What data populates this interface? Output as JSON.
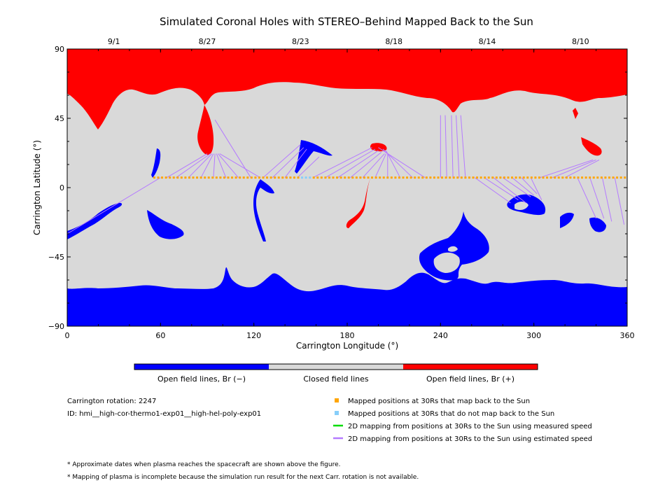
{
  "chart_data": {
    "type": "map",
    "title": "Simulated Coronal Holes with STEREO–Behind Mapped Back to the Sun",
    "xlabel": "Carrington Longitude (°)",
    "ylabel": "Carrington Latitude (°)",
    "xlim": [
      0,
      360
    ],
    "ylim": [
      -90,
      90
    ],
    "xticks": [
      0,
      60,
      120,
      180,
      240,
      300,
      360
    ],
    "yticks": [
      90,
      45,
      0,
      -45,
      -90
    ],
    "ytick_labels": [
      "90",
      "45",
      "0",
      "−45",
      "−90"
    ],
    "top_dates": [
      {
        "lon": 30,
        "label": "9/1"
      },
      {
        "lon": 90,
        "label": "8/27"
      },
      {
        "lon": 150,
        "label": "8/23"
      },
      {
        "lon": 210,
        "label": "8/18"
      },
      {
        "lon": 270,
        "label": "8/14"
      },
      {
        "lon": 330,
        "label": "8/10"
      }
    ],
    "colors": {
      "negative": "#0000ff",
      "closed": "#d9d9d9",
      "positive": "#ff0000",
      "mapped": "#ffa500",
      "unmapped": "#87cefa",
      "measured": "#00dd00",
      "estimated": "#b57bff"
    },
    "mapped_latitude": 6.5,
    "mapped_lon_start": 56,
    "mapped_lon_end": 360,
    "mapped_step": 2.5,
    "unmapped_lons": [
      151,
      153,
      155
    ],
    "field_lines": [
      {
        "from": [
          60,
          6.5
        ],
        "to": [
          0,
          -30
        ]
      },
      {
        "from": [
          64,
          6.5
        ],
        "to": [
          90,
          22
        ]
      },
      {
        "from": [
          70,
          6.5
        ],
        "to": [
          92,
          22
        ]
      },
      {
        "from": [
          78,
          6.5
        ],
        "to": [
          93,
          22
        ]
      },
      {
        "from": [
          86,
          6.5
        ],
        "to": [
          94,
          22
        ]
      },
      {
        "from": [
          94,
          6.5
        ],
        "to": [
          95,
          22
        ]
      },
      {
        "from": [
          102,
          6.5
        ],
        "to": [
          96,
          22
        ]
      },
      {
        "from": [
          110,
          6.5
        ],
        "to": [
          97,
          22
        ]
      },
      {
        "from": [
          118,
          6.5
        ],
        "to": [
          95,
          44
        ]
      },
      {
        "from": [
          124,
          6.5
        ],
        "to": [
          98,
          22
        ]
      },
      {
        "from": [
          126,
          6.5
        ],
        "to": [
          150,
          28
        ]
      },
      {
        "from": [
          132,
          6.5
        ],
        "to": [
          152,
          26
        ]
      },
      {
        "from": [
          140,
          6.5
        ],
        "to": [
          154,
          25
        ]
      },
      {
        "from": [
          148,
          6.5
        ],
        "to": [
          162,
          20
        ]
      },
      {
        "from": [
          158,
          6.5
        ],
        "to": [
          196,
          26
        ]
      },
      {
        "from": [
          166,
          6.5
        ],
        "to": [
          198,
          25
        ]
      },
      {
        "from": [
          174,
          6.5
        ],
        "to": [
          200,
          24
        ]
      },
      {
        "from": [
          182,
          6.5
        ],
        "to": [
          202,
          23
        ]
      },
      {
        "from": [
          190,
          6.5
        ],
        "to": [
          204,
          22
        ]
      },
      {
        "from": [
          198,
          6.5
        ],
        "to": [
          205,
          22
        ]
      },
      {
        "from": [
          206,
          6.5
        ],
        "to": [
          206,
          22
        ]
      },
      {
        "from": [
          214,
          6.5
        ],
        "to": [
          205,
          24
        ]
      },
      {
        "from": [
          222,
          6.5
        ],
        "to": [
          203,
          25
        ]
      },
      {
        "from": [
          230,
          6.5
        ],
        "to": [
          200,
          26
        ]
      },
      {
        "from": [
          240,
          6.5
        ],
        "to": [
          240,
          47
        ]
      },
      {
        "from": [
          244,
          6.5
        ],
        "to": [
          243,
          47
        ]
      },
      {
        "from": [
          248,
          6.5
        ],
        "to": [
          247,
          47
        ]
      },
      {
        "from": [
          252,
          6.5
        ],
        "to": [
          250,
          47
        ]
      },
      {
        "from": [
          256,
          6.5
        ],
        "to": [
          253,
          47
        ]
      },
      {
        "from": [
          262,
          6.5
        ],
        "to": [
          285,
          -10
        ]
      },
      {
        "from": [
          268,
          6.5
        ],
        "to": [
          290,
          -8
        ]
      },
      {
        "from": [
          274,
          6.5
        ],
        "to": [
          295,
          -10
        ]
      },
      {
        "from": [
          280,
          6.5
        ],
        "to": [
          298,
          -6
        ]
      },
      {
        "from": [
          286,
          6.5
        ],
        "to": [
          300,
          -5
        ]
      },
      {
        "from": [
          292,
          6.5
        ],
        "to": [
          302,
          -4
        ]
      },
      {
        "from": [
          298,
          6.5
        ],
        "to": [
          305,
          -8
        ]
      },
      {
        "from": [
          304,
          6.5
        ],
        "to": [
          338,
          18
        ]
      },
      {
        "from": [
          312,
          6.5
        ],
        "to": [
          340,
          18
        ]
      },
      {
        "from": [
          320,
          6.5
        ],
        "to": [
          342,
          18
        ]
      },
      {
        "from": [
          328,
          6.5
        ],
        "to": [
          340,
          -20
        ]
      },
      {
        "from": [
          336,
          6.5
        ],
        "to": [
          345,
          -20
        ]
      },
      {
        "from": [
          344,
          6.5
        ],
        "to": [
          350,
          -22
        ]
      },
      {
        "from": [
          352,
          6.5
        ],
        "to": [
          358,
          -24
        ]
      },
      {
        "from": [
          360,
          6.5
        ],
        "to": [
          360,
          -25
        ]
      }
    ]
  },
  "colorbar": {
    "neg_label": "Open field lines, Br (−)",
    "closed_label": "Closed field lines",
    "pos_label": "Open field lines, Br (+)"
  },
  "info": {
    "rotation": "Carrington rotation: 2247",
    "id": "ID: hmi__high-cor-thermo1-exp01__high-hel-poly-exp01"
  },
  "legend": {
    "mapped": "Mapped positions at 30Rs that map back to the Sun",
    "unmapped": "Mapped positions at 30Rs that do not map back to the Sun",
    "measured": "2D mapping from positions at 30Rs to the Sun using measured speed",
    "estimated": "2D mapping from positions at 30Rs to the Sun using estimated speed"
  },
  "notes": {
    "note1": "* Approximate dates when plasma reaches the spacecraft are shown above the figure.",
    "note2": "* Mapping of plasma is incomplete because the simulation run result for the next Carr. rotation is not available."
  }
}
